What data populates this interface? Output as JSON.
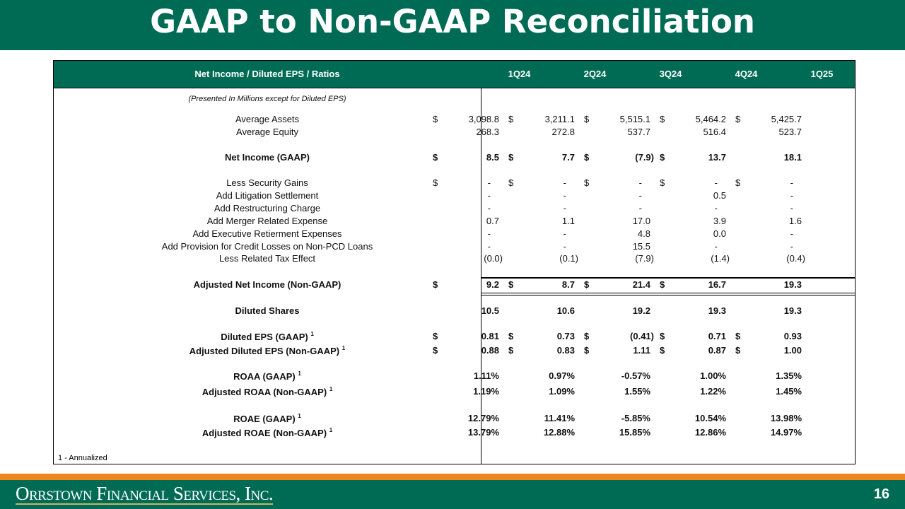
{
  "title": "GAAP to Non-GAAP Reconciliation",
  "table": {
    "header_label": "Net Income / Diluted EPS / Ratios",
    "quarters": [
      "1Q24",
      "2Q24",
      "3Q24",
      "4Q24",
      "1Q25"
    ],
    "rows": [
      {
        "label": "(Presented In Millions except for Diluted EPS)",
        "style": "italic",
        "values": [
          "",
          "",
          "",
          "",
          ""
        ],
        "dollar": [
          false,
          false,
          false,
          false,
          false
        ]
      },
      {
        "label": "Average Assets",
        "style": "normal",
        "values": [
          "3,098.8",
          "3,211.1",
          "5,515.1",
          "5,464.2",
          "5,425.7"
        ],
        "dollar": [
          true,
          true,
          true,
          true,
          true
        ]
      },
      {
        "label": "Average Equity",
        "style": "normal",
        "values": [
          "268.3",
          "272.8",
          "537.7",
          "516.4",
          "523.7"
        ],
        "dollar": [
          false,
          false,
          false,
          false,
          false
        ]
      },
      {
        "label": "Net Income (GAAP)",
        "style": "bold",
        "values": [
          "8.5",
          "7.7",
          "(7.9)",
          "13.7",
          "18.1"
        ],
        "dollar": [
          true,
          true,
          true,
          true,
          false
        ]
      },
      {
        "label": "Less Security Gains",
        "style": "normal",
        "values": [
          "-",
          "-",
          "-",
          "-",
          "-"
        ],
        "dollar": [
          true,
          true,
          true,
          true,
          true
        ]
      },
      {
        "label": "Add Litigation Settlement",
        "style": "normal",
        "values": [
          "-",
          "-",
          "-",
          "0.5",
          "-"
        ],
        "dollar": [
          false,
          false,
          false,
          false,
          false
        ]
      },
      {
        "label": "Add Restructuring Charge",
        "style": "normal",
        "values": [
          "-",
          "-",
          "-",
          "-",
          "-"
        ],
        "dollar": [
          false,
          false,
          false,
          false,
          false
        ]
      },
      {
        "label": "Add Merger Related Expense",
        "style": "normal",
        "values": [
          "0.7",
          "1.1",
          "17.0",
          "3.9",
          "1.6"
        ],
        "dollar": [
          false,
          false,
          false,
          false,
          false
        ]
      },
      {
        "label": "Add Executive Retierment Expenses",
        "style": "normal",
        "values": [
          "-",
          "-",
          "4.8",
          "0.0",
          "-"
        ],
        "dollar": [
          false,
          false,
          false,
          false,
          false
        ]
      },
      {
        "label": "Add Provision for Credit Losses on Non-PCD Loans",
        "style": "normal",
        "values": [
          "-",
          "-",
          "15.5",
          "-",
          "-"
        ],
        "dollar": [
          false,
          false,
          false,
          false,
          false
        ]
      },
      {
        "label": "Less Related Tax Effect",
        "style": "normal",
        "values": [
          "(0.0)",
          "(0.1)",
          "(7.9)",
          "(1.4)",
          "(0.4)"
        ],
        "dollar": [
          false,
          false,
          false,
          false,
          false
        ]
      },
      {
        "label": "Adjusted Net Income (Non-GAAP)",
        "style": "bold",
        "values": [
          "9.2",
          "8.7",
          "21.4",
          "16.7",
          "19.3"
        ],
        "dollar": [
          true,
          true,
          true,
          true,
          false
        ]
      },
      {
        "label": "Diluted Shares",
        "style": "bold",
        "values": [
          "10.5",
          "10.6",
          "19.2",
          "19.3",
          "19.3"
        ],
        "dollar": [
          false,
          false,
          false,
          false,
          false
        ]
      },
      {
        "label": "Diluted EPS (GAAP)",
        "sup": "1",
        "style": "bold",
        "values": [
          "0.81",
          "0.73",
          "(0.41)",
          "0.71",
          "0.93"
        ],
        "dollar": [
          true,
          true,
          true,
          true,
          true
        ]
      },
      {
        "label": "Adjusted Diluted EPS (Non-GAAP)",
        "sup": "1",
        "style": "bold",
        "values": [
          "0.88",
          "0.83",
          "1.11",
          "0.87",
          "1.00"
        ],
        "dollar": [
          true,
          true,
          true,
          true,
          true
        ]
      },
      {
        "label": "ROAA (GAAP)",
        "sup": "1",
        "style": "bold",
        "values": [
          "1.11%",
          "0.97%",
          "-0.57%",
          "1.00%",
          "1.35%"
        ],
        "dollar": [
          false,
          false,
          false,
          false,
          false
        ]
      },
      {
        "label": "Adjusted ROAA (Non-GAAP)",
        "sup": "1",
        "style": "bold",
        "values": [
          "1.19%",
          "1.09%",
          "1.55%",
          "1.22%",
          "1.45%"
        ],
        "dollar": [
          false,
          false,
          false,
          false,
          false
        ]
      },
      {
        "label": "ROAE (GAAP)",
        "sup": "1",
        "style": "bold",
        "values": [
          "12.79%",
          "11.41%",
          "-5.85%",
          "10.54%",
          "13.98%"
        ],
        "dollar": [
          false,
          false,
          false,
          false,
          false
        ]
      },
      {
        "label": "Adjusted ROAE (Non-GAAP)",
        "sup": "1",
        "style": "bold",
        "values": [
          "13.79%",
          "12.88%",
          "15.85%",
          "12.86%",
          "14.97%"
        ],
        "dollar": [
          false,
          false,
          false,
          false,
          false
        ]
      }
    ],
    "dollar_sign": "$",
    "footnote": "1 - Annualized"
  },
  "footer": {
    "company": "Orrstown Financial Services, Inc.",
    "page_number": "16"
  },
  "colors": {
    "brand_green": "#006b54",
    "accent_orange": "#f0861e"
  }
}
